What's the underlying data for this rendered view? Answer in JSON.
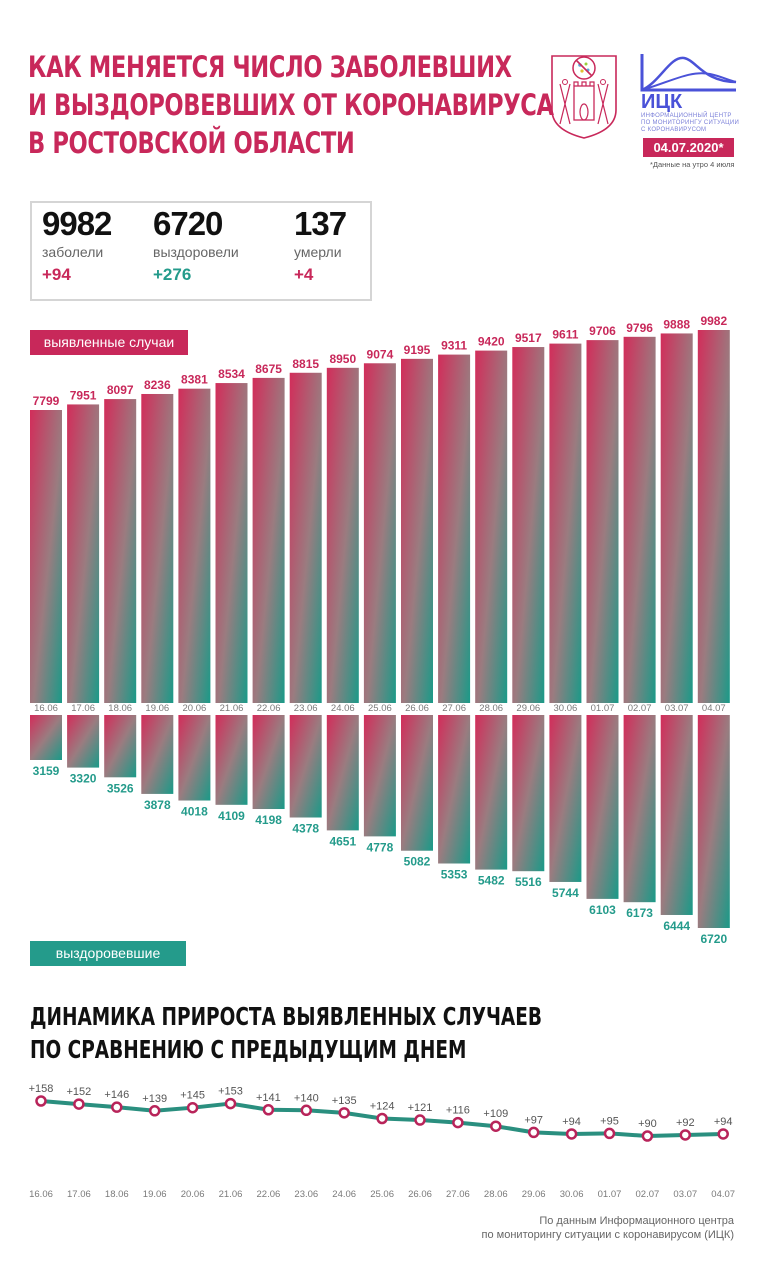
{
  "header": {
    "title_lines": [
      "КАК МЕНЯЕТСЯ ЧИСЛО ЗАБОЛЕВШИХ",
      "И ВЫЗДОРОВЕВШИХ ОТ КОРОНАВИРУСА",
      "В РОСТОВСКОЙ ОБЛАСТИ"
    ],
    "crest_icon": "rostov-oblast-coat-of-arms-icon",
    "ick_logo_icon": "ick-wave-logo-icon",
    "ick_name": "ИЦК",
    "ick_subtitle_lines": [
      "Информационный центр",
      "по мониторингу ситуации",
      "с коронавирусом"
    ],
    "date": "04.07.2020*",
    "date_note": "*Данные на утро 4 июля"
  },
  "stats": [
    {
      "value": "9982",
      "label": "заболели",
      "delta": "+94",
      "color": "#c8285a"
    },
    {
      "value": "6720",
      "label": "выздоровели",
      "delta": "+276",
      "color": "#249b8b"
    },
    {
      "value": "137",
      "label": "умерли",
      "delta": "+4",
      "color": "#c8285a"
    }
  ],
  "colors": {
    "accent_pink": "#c8285a",
    "accent_teal": "#249b8b",
    "line_teal": "#2a8f7f"
  },
  "legends": {
    "cases": "выявленные случаи",
    "recovered": "выздоровевшие"
  },
  "chart_data": [
    {
      "type": "bar",
      "title": "выявленные случаи / выздоровевшие",
      "categories": [
        "16.06",
        "17.06",
        "18.06",
        "19.06",
        "20.06",
        "21.06",
        "22.06",
        "23.06",
        "24.06",
        "25.06",
        "26.06",
        "27.06",
        "28.06",
        "29.06",
        "30.06",
        "01.07",
        "02.07",
        "03.07",
        "04.07"
      ],
      "series": [
        {
          "name": "выявленные случаи",
          "direction": "up",
          "values": [
            7799,
            7951,
            8097,
            8236,
            8381,
            8534,
            8675,
            8815,
            8950,
            9074,
            9195,
            9311,
            9420,
            9517,
            9611,
            9706,
            9796,
            9888,
            9982
          ]
        },
        {
          "name": "выздоровевшие",
          "direction": "down",
          "values": [
            3159,
            3320,
            3526,
            3878,
            4018,
            4109,
            4198,
            4378,
            4651,
            4778,
            5082,
            5353,
            5482,
            5516,
            5744,
            6103,
            6173,
            6444,
            6720
          ]
        }
      ],
      "xlabel": "",
      "ylabel": "",
      "grid": false
    },
    {
      "type": "line",
      "title": "ДИНАМИКА ПРИРОСТА ВЫЯВЛЕННЫХ СЛУЧАЕВ ПО СРАВНЕНИЮ С ПРЕДЫДУЩИМ ДНЕМ",
      "title_lines": [
        "ДИНАМИКА ПРИРОСТА ВЫЯВЛЕННЫХ СЛУЧАЕВ",
        "ПО СРАВНЕНИЮ С ПРЕДЫДУЩИМ ДНЕМ"
      ],
      "categories": [
        "16.06",
        "17.06",
        "18.06",
        "19.06",
        "20.06",
        "21.06",
        "22.06",
        "23.06",
        "24.06",
        "25.06",
        "26.06",
        "27.06",
        "28.06",
        "29.06",
        "30.06",
        "01.07",
        "02.07",
        "03.07",
        "04.07"
      ],
      "values": [
        158,
        152,
        146,
        139,
        145,
        153,
        141,
        140,
        135,
        124,
        121,
        116,
        109,
        97,
        94,
        95,
        90,
        92,
        94
      ],
      "value_labels": [
        "+158",
        "+152",
        "+146",
        "+139",
        "+145",
        "+153",
        "+141",
        "+140",
        "+135",
        "+124",
        "+121",
        "+116",
        "+109",
        "+97",
        "+94",
        "+95",
        "+90",
        "+92",
        "+94"
      ],
      "xlabel": "",
      "ylabel": "",
      "grid": false
    }
  ],
  "footer": {
    "source_lines": [
      "По данным Информационного центра",
      "по мониторингу ситуации с коронавирусом (ИЦК)"
    ]
  }
}
